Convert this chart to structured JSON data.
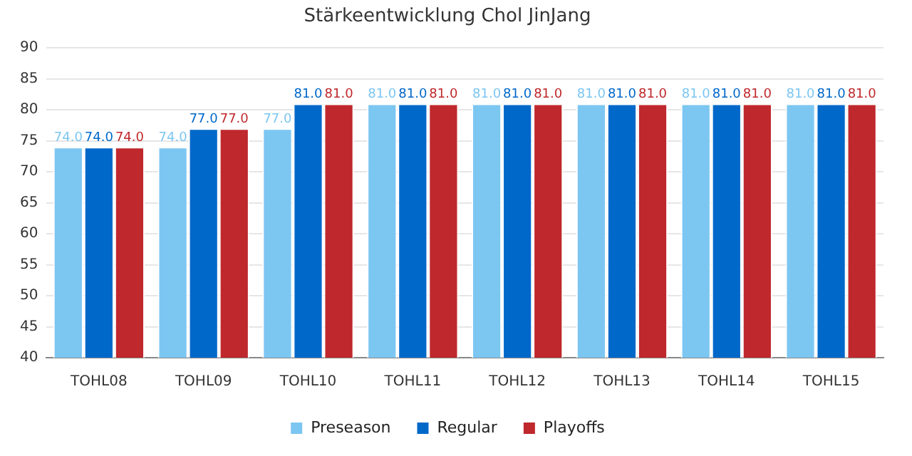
{
  "chart_data": {
    "type": "bar",
    "title": "Stärkeentwicklung Chol JinJang",
    "categories": [
      "TOHL08",
      "TOHL09",
      "TOHL10",
      "TOHL11",
      "TOHL12",
      "TOHL13",
      "TOHL14",
      "TOHL15"
    ],
    "series": [
      {
        "name": "Preseason",
        "color": "#7cc6f2",
        "values": [
          74,
          74,
          77,
          81,
          81,
          81,
          81,
          81
        ],
        "value_labels": [
          "74.0",
          "74.0",
          "77.0",
          "81.0",
          "81.0",
          "81.0",
          "81.0",
          "81.0"
        ]
      },
      {
        "name": "Regular",
        "color": "#0068c9",
        "values": [
          74,
          77,
          81,
          81,
          81,
          81,
          81,
          81
        ],
        "value_labels": [
          "74.0",
          "77.0",
          "81.0",
          "81.0",
          "81.0",
          "81.0",
          "81.0",
          "81.0"
        ]
      },
      {
        "name": "Playoffs",
        "color": "#bf282c",
        "values": [
          74,
          77,
          81,
          81,
          81,
          81,
          81,
          81
        ],
        "value_labels": [
          "74.0",
          "77.0",
          "81.0",
          "81.0",
          "81.0",
          "81.0",
          "81.0",
          "81.0"
        ]
      }
    ],
    "ylim": [
      40,
      90
    ],
    "yticks": [
      40,
      45,
      50,
      55,
      60,
      65,
      70,
      75,
      80,
      85,
      90
    ],
    "grid": "y",
    "legend": "bottom"
  }
}
